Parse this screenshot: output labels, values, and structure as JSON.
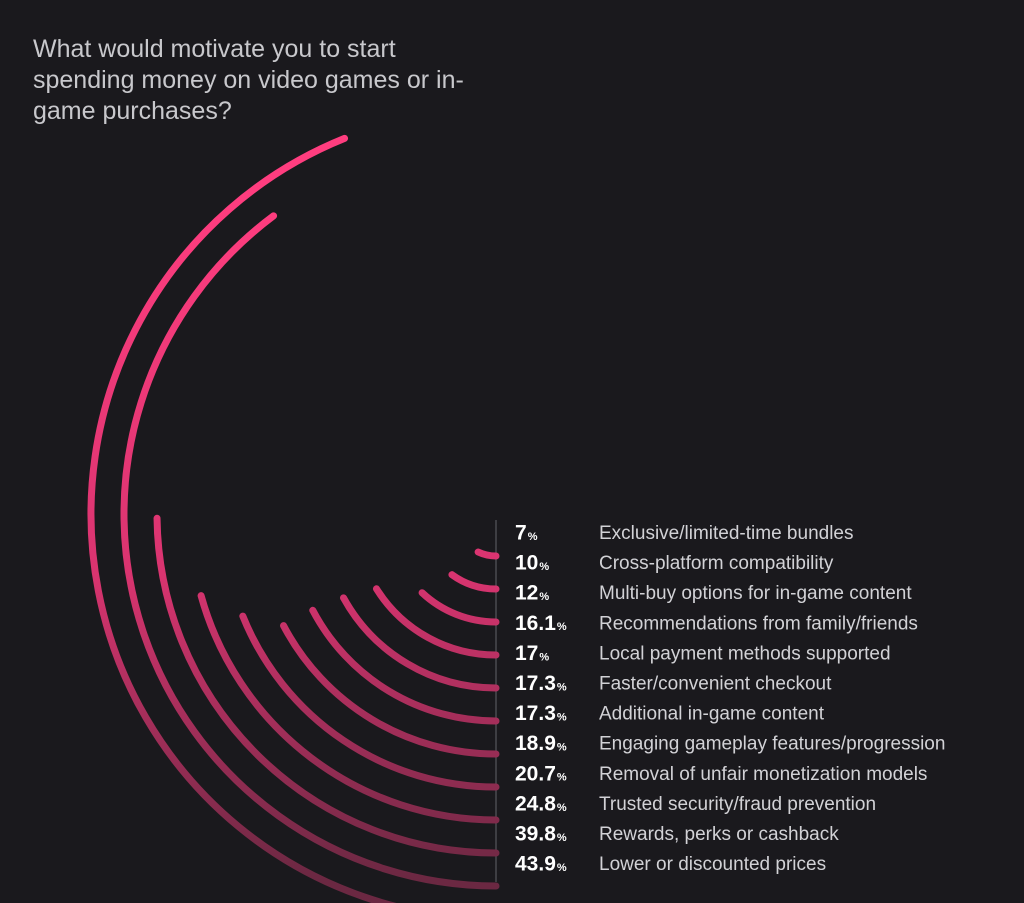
{
  "colors": {
    "background": "#1a191d",
    "accent": "#ff3d7f",
    "accent_dim": "#6b2842",
    "divider": "#4a4a50",
    "title": "#c8c8cc",
    "label": "#d2d2d6"
  },
  "chart_data": {
    "type": "radial-bar",
    "title": "What would motivate you to start spending money on video games or in-game purchases?",
    "unit": "%",
    "max_value": 100,
    "series": [
      {
        "label": "Exclusive/limited-time bundles",
        "value": 7,
        "value_text": "7"
      },
      {
        "label": "Cross-platform compatibility",
        "value": 10,
        "value_text": "10"
      },
      {
        "label": "Multi-buy options for in-game content",
        "value": 12,
        "value_text": "12"
      },
      {
        "label": "Recommendations from family/friends",
        "value": 16.1,
        "value_text": "16.1"
      },
      {
        "label": "Local payment methods supported",
        "value": 17,
        "value_text": "17"
      },
      {
        "label": "Faster/convenient checkout",
        "value": 17.3,
        "value_text": "17.3"
      },
      {
        "label": "Additional in-game content",
        "value": 17.3,
        "value_text": "17.3"
      },
      {
        "label": "Engaging gameplay features/progression",
        "value": 18.9,
        "value_text": "18.9"
      },
      {
        "label": "Removal of unfair monetization models",
        "value": 20.7,
        "value_text": "20.7"
      },
      {
        "label": "Trusted security/fraud prevention",
        "value": 24.8,
        "value_text": "24.8"
      },
      {
        "label": "Rewards, perks or cashback",
        "value": 39.8,
        "value_text": "39.8"
      },
      {
        "label": "Lower or discounted prices",
        "value": 43.9,
        "value_text": "43.9"
      }
    ]
  }
}
